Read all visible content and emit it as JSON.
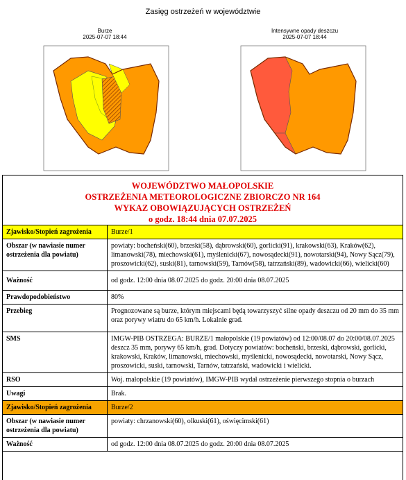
{
  "page_title": "Zasięg ostrzeżeń w województwie",
  "maps": [
    {
      "title": "Burze",
      "timestamp": "2025-07-07 18:44"
    },
    {
      "title": "Intensywne opady deszczu",
      "timestamp": "2025-07-07 18:44"
    }
  ],
  "colors": {
    "yellow": "#ffff00",
    "orange": "#ff9900",
    "red": "#ff5a3c",
    "hatch": "#d2691e"
  },
  "doc": {
    "head": [
      "WOJEWÓDZTWO MAŁOPOLSKIE",
      "OSTRZEŻENIA METEOROLOGICZNE  ZBIORCZO  NR 164",
      "WYKAZ  OBOWIĄZUJĄCYCH OSTRZEŻEŃ",
      "o godz. 18:44 dnia 07.07.2025"
    ],
    "warning1": {
      "phenomenon_label": "Zjawisko/Stopień zagrożenia",
      "phenomenon": "Burze/1",
      "area_label": "Obszar (w nawiasie numer ostrzeżenia dla powiatu)",
      "area": "powiaty: bocheński(60), brzeski(58), dąbrowski(60), gorlicki(91), krakowski(63), Kraków(62), limanowski(78), miechowski(61), myślenicki(67),  nowosądecki(91), nowotarski(94), Nowy Sącz(79), proszowicki(62), suski(81), tarnowski(59), Tarnów(58), tatrzański(89), wadowicki(66), wielicki(60)",
      "validity_label": "Ważność",
      "validity": "od godz. 12:00 dnia 08.07.2025 do godz. 20:00 dnia 08.07.2025",
      "probability_label": "Prawdopodobieństwo",
      "probability": "80%",
      "course_label": "Przebieg",
      "course": "Prognozowane są burze, którym miejscami będą towarzyszyć  silne opady deszczu od 20 mm do 35 mm oraz porywy wiatru do 65 km/h. Lokalnie grad.",
      "sms_label": "SMS",
      "sms": "IMGW-PIB OSTRZEGA: BURZE/1 małopolskie (19 powiatów) od 12:00/08.07 do 20:00/08.07.2025 deszcz 35 mm, porywy 65 km/h, grad. Dotyczy powiatów: bocheński, brzeski, dąbrowski, gorlicki, krakowski, Kraków, limanowski, miechowski, myślenicki, nowosądecki, nowotarski, Nowy Sącz, proszowicki, suski, tarnowski, Tarnów, tatrzański, wadowicki i wielicki.",
      "rso_label": "RSO",
      "rso": "Woj. małopolskie (19 powiatów), IMGW-PIB wydał ostrzeżenie pierwszego stopnia o burzach",
      "notes_label": "Uwagi",
      "notes": "Brak."
    },
    "warning2": {
      "phenomenon_label": "Zjawisko/Stopień zagrożenia",
      "phenomenon": "Burze/2",
      "area_label": "Obszar (w nawiasie numer ostrzeżenia dla powiatu)",
      "area": "powiaty: chrzanowski(60), olkuski(61), oświęcimski(61)",
      "validity_label": "Ważność",
      "validity": "od godz. 12:00 dnia 08.07.2025 do godz. 20:00 dnia 08.07.2025"
    }
  }
}
